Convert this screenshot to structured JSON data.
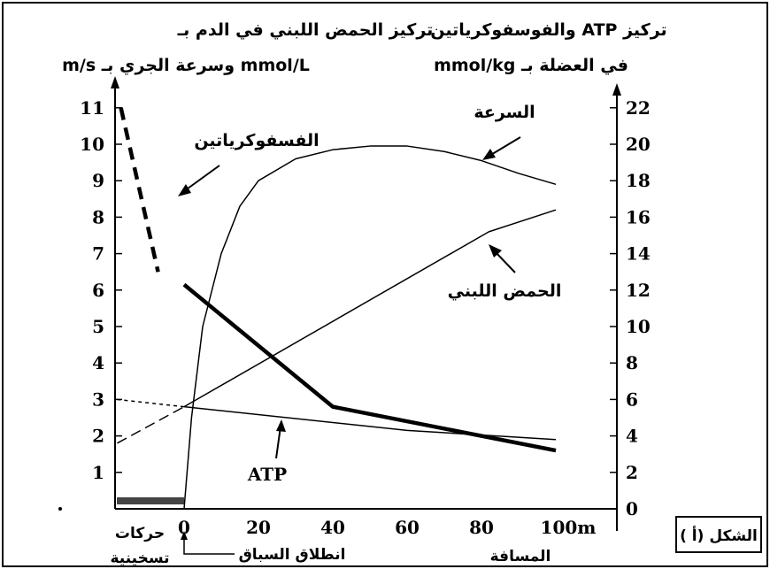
{
  "figure_label": "الشكل (أ )",
  "chart_data": {
    "type": "line",
    "left_axis": {
      "title_line1": "تركيز الحمض اللبني في الدم بـ",
      "title_line2": "mmol/L وسرعة الجري بـ m/s",
      "ticks": [
        "1",
        "2",
        "3",
        "4",
        "5",
        "6",
        "7",
        "8",
        "9",
        "10",
        "11"
      ],
      "range": [
        0,
        11
      ]
    },
    "right_axis": {
      "title_line1": "تركيز ATP والفوسفوكرياتين",
      "title_line2": "في العضلة بـ mmol/kg",
      "ticks": [
        "0",
        "2",
        "4",
        "6",
        "8",
        "10",
        "12",
        "14",
        "16",
        "18",
        "20",
        "22"
      ],
      "range": [
        0,
        22
      ]
    },
    "x_axis": {
      "ticks": [
        "0",
        "20",
        "40",
        "60",
        "80",
        "100m"
      ],
      "title": "المسافة",
      "range": [
        0,
        100
      ],
      "note_warmup_line1": "حركات",
      "note_warmup_line2": "تسخينية",
      "note_start": "انطلاق السباق"
    },
    "series": [
      {
        "name": "الفسفوكرياتين",
        "axis": "right",
        "warmup_dashed": [
          [
            -17,
            22
          ],
          [
            -7,
            13
          ]
        ],
        "values": [
          [
            0,
            12.3
          ],
          [
            40,
            5.6
          ],
          [
            100,
            3.2
          ]
        ]
      },
      {
        "name": "السرعة",
        "axis": "left",
        "values": [
          [
            0,
            0
          ],
          [
            2,
            2.5
          ],
          [
            5,
            5.0
          ],
          [
            10,
            7.0
          ],
          [
            15,
            8.3
          ],
          [
            20,
            9.0
          ],
          [
            30,
            9.6
          ],
          [
            40,
            9.85
          ],
          [
            50,
            9.95
          ],
          [
            60,
            9.95
          ],
          [
            70,
            9.8
          ],
          [
            80,
            9.55
          ],
          [
            90,
            9.2
          ],
          [
            100,
            8.9
          ]
        ]
      },
      {
        "name": "الحمض اللبني",
        "axis": "left",
        "warmup_dashed": [
          [
            -18,
            1.8
          ],
          [
            0,
            2.8
          ]
        ],
        "values": [
          [
            0,
            2.8
          ],
          [
            82,
            7.6
          ],
          [
            100,
            8.2
          ]
        ]
      },
      {
        "name": "ATP",
        "axis": "right",
        "warmup_dashed": [
          [
            -18,
            6.0
          ],
          [
            0,
            5.6
          ]
        ],
        "values": [
          [
            0,
            5.6
          ],
          [
            60,
            4.3
          ],
          [
            100,
            3.8
          ]
        ]
      }
    ],
    "annotations": [
      {
        "text": "الفسفوكرياتين",
        "series": "الفسفوكرياتين"
      },
      {
        "text": "السرعة",
        "series": "السرعة"
      },
      {
        "text": "الحمض اللبني",
        "series": "الحمض اللبني"
      },
      {
        "text": "ATP",
        "series": "ATP"
      }
    ]
  }
}
